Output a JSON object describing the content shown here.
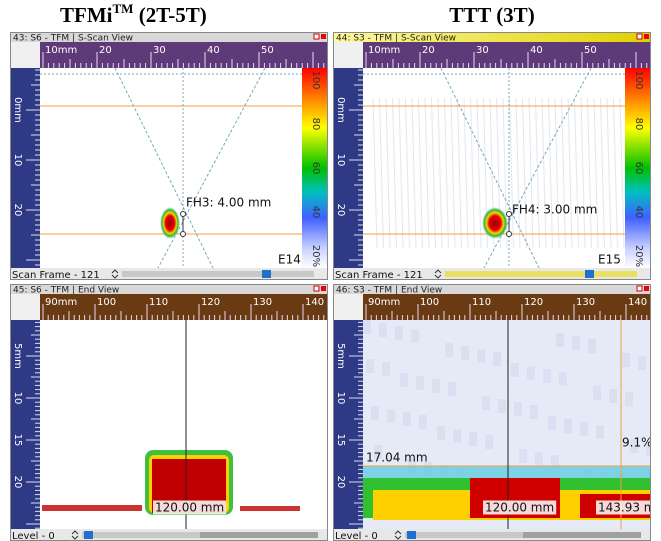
{
  "headings": [
    {
      "text": "TFMi",
      "sup": "TM",
      "suffix": " (2T-5T)"
    },
    {
      "text": "TTT (3T)"
    }
  ],
  "panels": [
    {
      "title": "43: S6 - TFM | S-Scan View",
      "top_ruler": [
        "10mm",
        "20",
        "30",
        "40",
        "50"
      ],
      "left_ruler": [
        "0mm",
        "10",
        "20"
      ],
      "color_scale": [
        "100",
        "80",
        "60",
        "40",
        "20%"
      ],
      "annotations": [
        "FH3: 4.00 mm",
        "E14"
      ],
      "status": "Scan Frame - 121"
    },
    {
      "title": "44: S3 - TFM | S-Scan View",
      "top_ruler": [
        "10mm",
        "20",
        "30",
        "40",
        "50"
      ],
      "left_ruler": [
        "0mm",
        "10",
        "20"
      ],
      "color_scale": [
        "100",
        "80",
        "60",
        "40",
        "20%"
      ],
      "annotations": [
        "FH4: 3.00 mm",
        "E15"
      ],
      "status": "Scan Frame - 121"
    },
    {
      "title": "45: S6 - TFM | End View",
      "top_ruler": [
        "90mm",
        "100",
        "110",
        "120",
        "130",
        "140"
      ],
      "left_ruler": [
        "5mm",
        "10",
        "15",
        "20"
      ],
      "annotations": [
        "120.00 mm"
      ],
      "status": "Level - 0"
    },
    {
      "title": "46: S3 - TFM | End View",
      "top_ruler": [
        "90mm",
        "100",
        "110",
        "120",
        "130",
        "140"
      ],
      "left_ruler": [
        "5mm",
        "10",
        "15",
        "20"
      ],
      "annotations": [
        "17.04 mm",
        "9.1%",
        "120.00 mm",
        "143.93 m"
      ],
      "status": "Level - 0"
    }
  ]
}
